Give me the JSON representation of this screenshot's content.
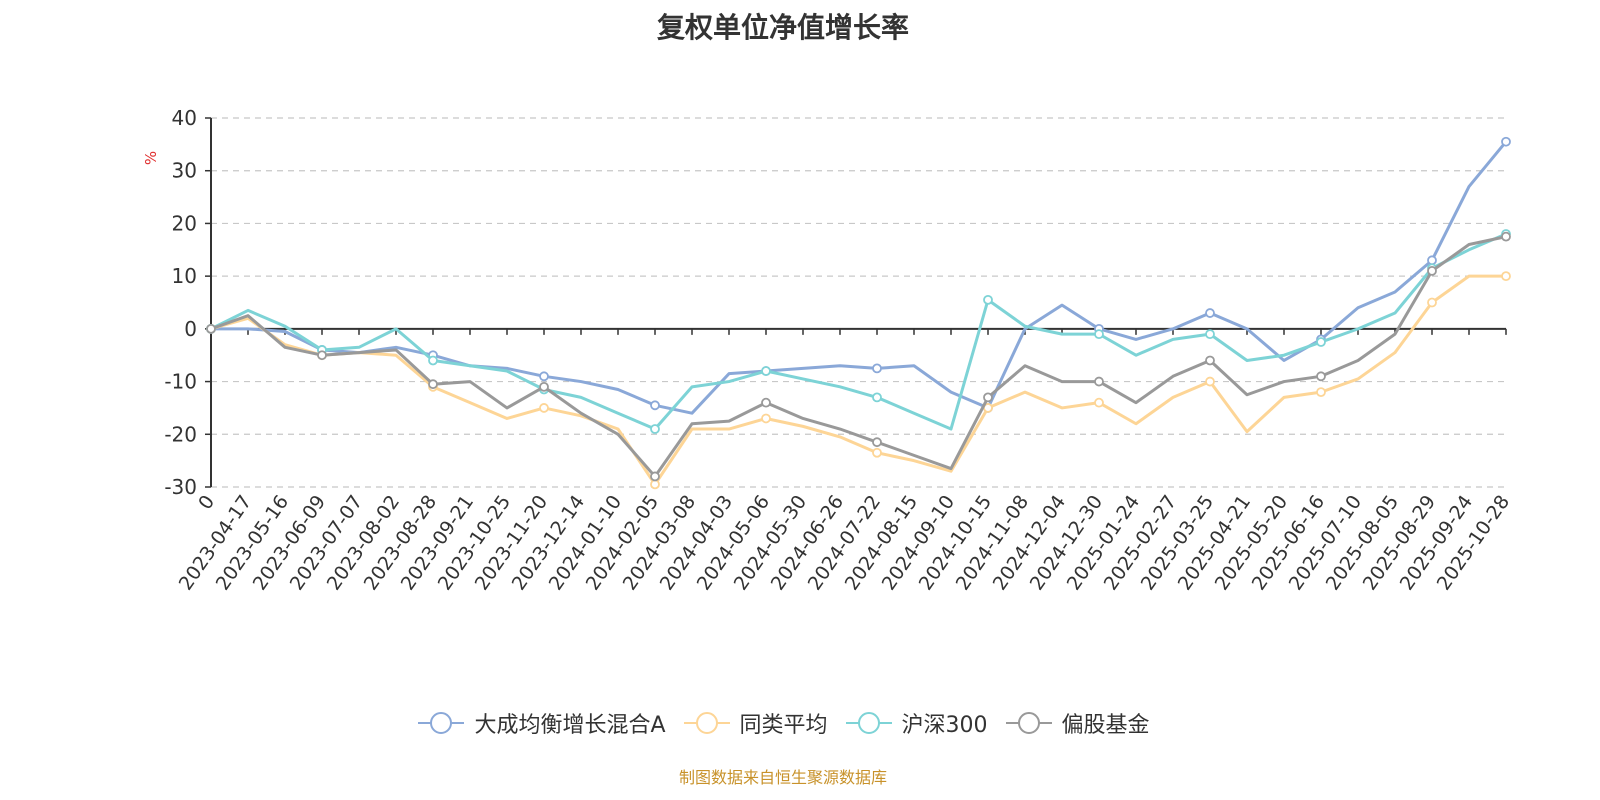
{
  "title": "复权单位净值增长率",
  "source_note": "制图数据来自恒生聚源数据库",
  "colors": {
    "source_note": "#c8922a",
    "ylabel": "#e03030",
    "axis": "#333333",
    "grid": "#c8c8c8"
  },
  "legend": [
    {
      "name": "大成均衡增长混合A",
      "color": "#8aa8d8"
    },
    {
      "name": "同类平均",
      "color": "#fdd596"
    },
    {
      "name": "沪深300",
      "color": "#7dd3d6"
    },
    {
      "name": "偏股基金",
      "color": "#999999"
    }
  ],
  "chart_data": {
    "type": "line",
    "title": "复权单位净值增长率",
    "ylabel": "%",
    "xlabel": "",
    "ylim": [
      -30,
      40
    ],
    "yticks": [
      -30,
      -20,
      -10,
      0,
      10,
      20,
      30,
      40
    ],
    "grid": true,
    "legend_position": "bottom",
    "x": [
      "0",
      "2023-04-17",
      "2023-05-16",
      "2023-06-09",
      "2023-07-07",
      "2023-08-02",
      "2023-08-28",
      "2023-09-21",
      "2023-10-25",
      "2023-11-20",
      "2023-12-14",
      "2024-01-10",
      "2024-02-05",
      "2024-03-08",
      "2024-04-03",
      "2024-05-06",
      "2024-05-30",
      "2024-06-26",
      "2024-07-22",
      "2024-08-15",
      "2024-09-10",
      "2024-10-15",
      "2024-11-08",
      "2024-12-04",
      "2024-12-30",
      "2025-01-24",
      "2025-02-27",
      "2025-03-25",
      "2025-04-21",
      "2025-05-20",
      "2025-06-16",
      "2025-07-10",
      "2025-08-05",
      "2025-08-29",
      "2025-09-24",
      "2025-10-28"
    ],
    "series": [
      {
        "name": "大成均衡增长混合A",
        "color": "#8aa8d8",
        "values": [
          0,
          0,
          -0.5,
          -4,
          -4.5,
          -3.5,
          -5,
          -7,
          -7.5,
          -9,
          -10,
          -11.5,
          -14.5,
          -16,
          -8.5,
          -8,
          -7.5,
          -7,
          -7.5,
          -7,
          -12,
          -15,
          0,
          4.5,
          0,
          -2,
          0,
          3,
          0,
          -6,
          -2,
          4,
          7,
          13,
          27,
          35.5
        ]
      },
      {
        "name": "同类平均",
        "color": "#fdd596",
        "values": [
          0,
          2,
          -3,
          -5,
          -4.5,
          -5,
          -11,
          -14,
          -17,
          -15,
          -16.5,
          -19,
          -29.5,
          -19,
          -19,
          -17,
          -18.5,
          -20.5,
          -23.5,
          -25,
          -27,
          -15,
          -12,
          -15,
          -14,
          -18,
          -13,
          -10,
          -19.5,
          -13,
          -12,
          -9.5,
          -4.5,
          5,
          10,
          10
        ]
      },
      {
        "name": "沪深300",
        "color": "#7dd3d6",
        "values": [
          0,
          3.5,
          0.5,
          -4,
          -3.5,
          0,
          -6,
          -7,
          -8,
          -11.5,
          -13,
          -16,
          -19,
          -11,
          -10,
          -8,
          -9.5,
          -11,
          -13,
          -16,
          -19,
          5.5,
          0.5,
          -1,
          -1,
          -5,
          -2,
          -1,
          -6,
          -5,
          -2.5,
          0,
          3,
          11.5,
          15,
          18
        ]
      },
      {
        "name": "偏股基金",
        "color": "#999999",
        "values": [
          0,
          2.5,
          -3.5,
          -5,
          -4.5,
          -4,
          -10.5,
          -10,
          -15,
          -11,
          -16,
          -20,
          -28,
          -18,
          -17.5,
          -14,
          -17,
          -19,
          -21.5,
          -24,
          -26.5,
          -13,
          -7,
          -10,
          -10,
          -14,
          -9,
          -6,
          -12.5,
          -10,
          -9,
          -6,
          -1,
          11,
          16,
          17.5
        ]
      }
    ]
  }
}
